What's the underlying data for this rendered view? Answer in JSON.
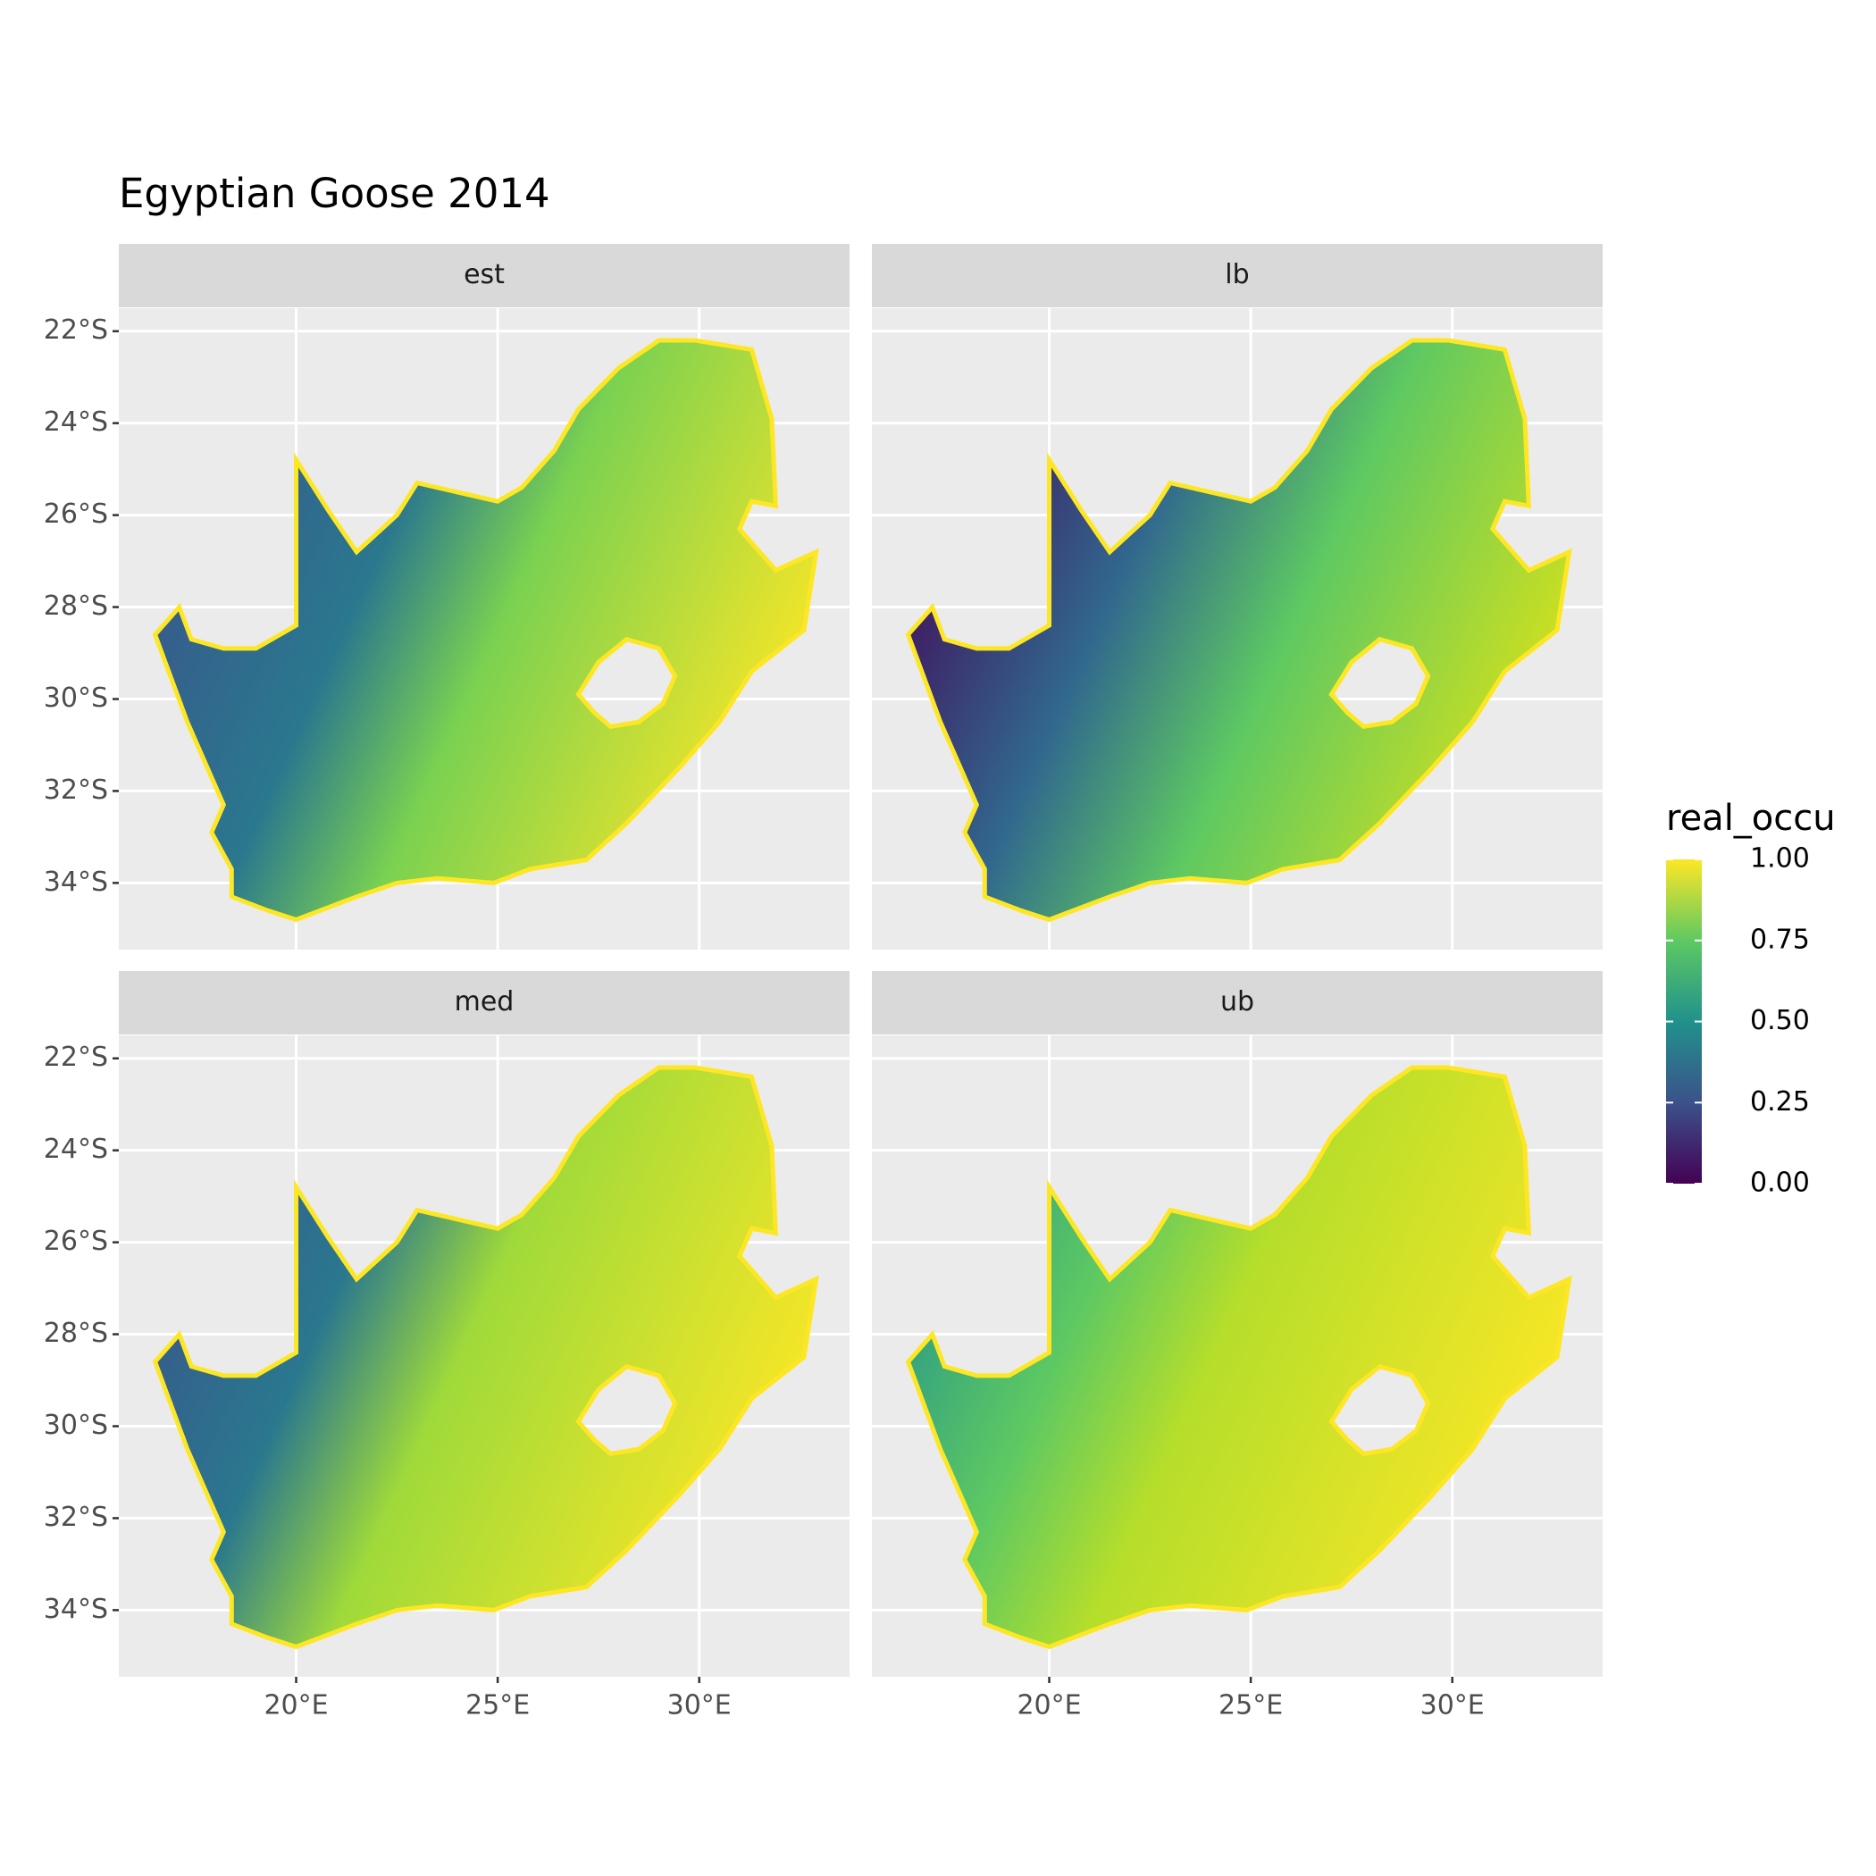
{
  "chart_data": {
    "type": "raster-map",
    "title": "Egyptian Goose 2014",
    "facets": [
      "est",
      "lb",
      "med",
      "ub"
    ],
    "xlim": [
      15.6,
      33.73
    ],
    "ylim": [
      -35.45,
      -21.5
    ],
    "xticks": [
      {
        "value": 20,
        "label": "20°E"
      },
      {
        "value": 25,
        "label": "25°E"
      },
      {
        "value": 30,
        "label": "30°E"
      }
    ],
    "yticks": [
      {
        "value": -22,
        "label": "22°S"
      },
      {
        "value": -24,
        "label": "24°S"
      },
      {
        "value": -26,
        "label": "26°S"
      },
      {
        "value": -28,
        "label": "28°S"
      },
      {
        "value": -30,
        "label": "30°S"
      },
      {
        "value": -32,
        "label": "32°S"
      },
      {
        "value": -34,
        "label": "34°S"
      }
    ],
    "grid": true,
    "legend": {
      "title": "real_occu",
      "limits": [
        0,
        1
      ],
      "ticks": [
        {
          "value": 0,
          "label": "0.00"
        },
        {
          "value": 0.25,
          "label": "0.25"
        },
        {
          "value": 0.5,
          "label": "0.50"
        },
        {
          "value": 0.75,
          "label": "0.75"
        },
        {
          "value": 1,
          "label": "1.00"
        }
      ],
      "colors": [
        "#440154",
        "#3b528b",
        "#21918c",
        "#5ec962",
        "#fde725"
      ]
    }
  }
}
